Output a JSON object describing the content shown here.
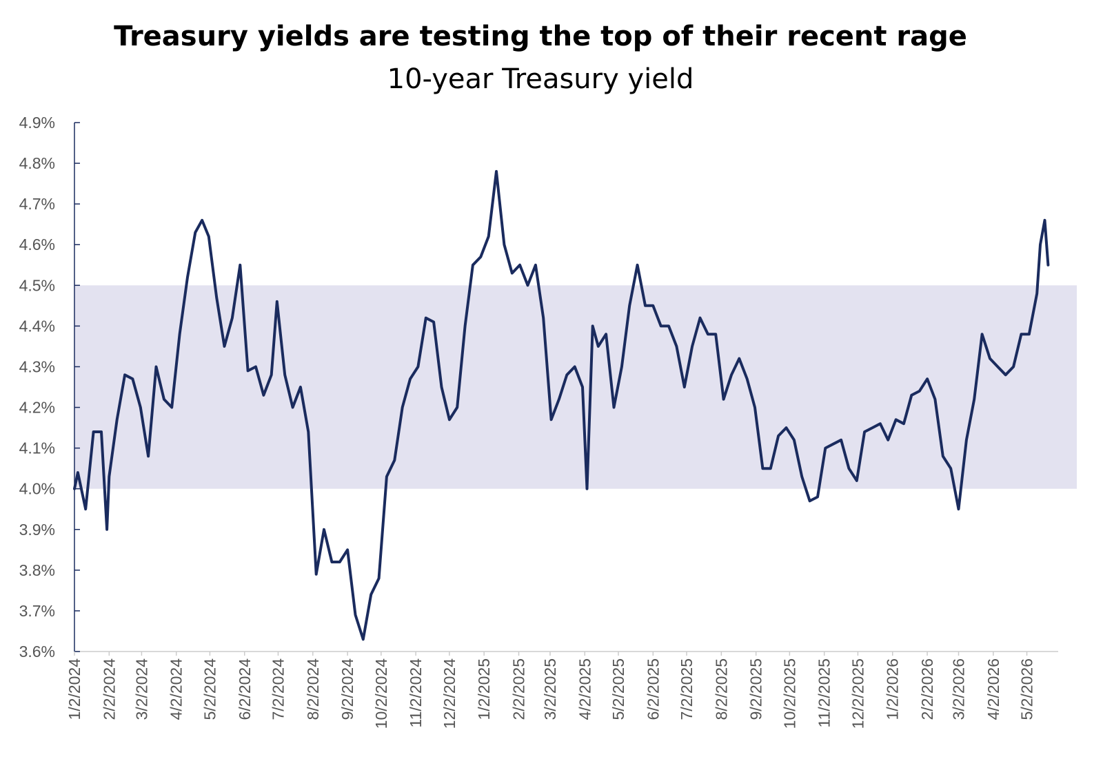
{
  "chart_data": {
    "type": "line",
    "title": "Treasury yields are testing the top of their recent rage",
    "subtitle": "10-year Treasury yield",
    "color": "#1a2b5e",
    "shaded_range": [
      4.0,
      4.5
    ],
    "shaded_color": "#e3e2f0",
    "x": [
      "1/2/2024",
      "1/5/2024",
      "1/12/2024",
      "1/19/2024",
      "1/26/2024",
      "1/31/2024",
      "2/2/2024",
      "2/9/2024",
      "2/16/2024",
      "2/23/2024",
      "3/1/2024",
      "3/8/2024",
      "3/15/2024",
      "3/22/2024",
      "3/29/2024",
      "4/5/2024",
      "4/12/2024",
      "4/19/2024",
      "4/25/2024",
      "5/1/2024",
      "5/8/2024",
      "5/15/2024",
      "5/22/2024",
      "5/29/2024",
      "6/5/2024",
      "6/12/2024",
      "6/19/2024",
      "6/26/2024",
      "7/1/2024",
      "7/8/2024",
      "7/15/2024",
      "7/22/2024",
      "7/29/2024",
      "8/5/2024",
      "8/12/2024",
      "8/19/2024",
      "8/26/2024",
      "9/2/2024",
      "9/9/2024",
      "9/16/2024",
      "9/23/2024",
      "9/30/2024",
      "10/7/2024",
      "10/14/2024",
      "10/21/2024",
      "10/28/2024",
      "11/4/2024",
      "11/11/2024",
      "11/18/2024",
      "11/25/2024",
      "12/2/2024",
      "12/9/2024",
      "12/16/2024",
      "12/23/2024",
      "12/30/2024",
      "1/6/2025",
      "1/13/2025",
      "1/20/2025",
      "1/27/2025",
      "2/3/2025",
      "2/10/2025",
      "2/17/2025",
      "2/24/2025",
      "3/3/2025",
      "3/10/2025",
      "3/17/2025",
      "3/24/2025",
      "3/31/2025",
      "4/4/2025",
      "4/9/2025",
      "4/14/2025",
      "4/21/2025",
      "4/28/2025",
      "5/5/2025",
      "5/12/2025",
      "5/19/2025",
      "5/26/2025",
      "6/2/2025",
      "6/9/2025",
      "6/16/2025",
      "6/23/2025",
      "6/30/2025",
      "7/7/2025",
      "7/14/2025",
      "7/21/2025",
      "7/28/2025",
      "8/4/2025",
      "8/11/2025",
      "8/18/2025",
      "8/25/2025",
      "9/1/2025",
      "9/8/2025",
      "9/15/2025",
      "9/22/2025",
      "9/29/2025",
      "10/6/2025",
      "10/13/2025",
      "10/20/2025",
      "10/27/2025",
      "11/3/2025",
      "11/10/2025",
      "11/17/2025",
      "11/24/2025",
      "12/1/2025",
      "12/8/2025",
      "12/15/2025",
      "12/22/2025",
      "12/29/2025",
      "1/5/2026",
      "1/12/2026",
      "1/19/2026",
      "1/26/2026",
      "2/2/2026",
      "2/9/2026",
      "2/16/2026",
      "2/23/2026",
      "3/2/2026",
      "3/9/2026",
      "3/16/2026",
      "3/23/2026",
      "3/30/2026",
      "4/6/2026",
      "4/13/2026",
      "4/20/2026",
      "4/27/2026",
      "5/4/2026",
      "5/11/2026",
      "5/14/2026",
      "5/18/2026",
      "5/21/2026"
    ],
    "values": [
      4.0,
      4.04,
      3.95,
      4.14,
      4.14,
      3.9,
      4.03,
      4.17,
      4.28,
      4.27,
      4.2,
      4.08,
      4.3,
      4.22,
      4.2,
      4.38,
      4.52,
      4.63,
      4.66,
      4.62,
      4.47,
      4.35,
      4.42,
      4.55,
      4.29,
      4.3,
      4.23,
      4.28,
      4.46,
      4.28,
      4.2,
      4.25,
      4.14,
      3.79,
      3.9,
      3.82,
      3.82,
      3.85,
      3.69,
      3.63,
      3.74,
      3.78,
      4.03,
      4.07,
      4.2,
      4.27,
      4.3,
      4.42,
      4.41,
      4.25,
      4.17,
      4.2,
      4.4,
      4.55,
      4.57,
      4.62,
      4.78,
      4.6,
      4.53,
      4.55,
      4.5,
      4.55,
      4.42,
      4.17,
      4.22,
      4.28,
      4.3,
      4.25,
      4.0,
      4.4,
      4.35,
      4.38,
      4.2,
      4.3,
      4.45,
      4.55,
      4.45,
      4.45,
      4.4,
      4.4,
      4.35,
      4.25,
      4.35,
      4.42,
      4.38,
      4.38,
      4.22,
      4.28,
      4.32,
      4.27,
      4.2,
      4.05,
      4.05,
      4.13,
      4.15,
      4.12,
      4.03,
      3.97,
      3.98,
      4.1,
      4.11,
      4.12,
      4.05,
      4.02,
      4.14,
      4.15,
      4.16,
      4.12,
      4.17,
      4.16,
      4.23,
      4.24,
      4.27,
      4.22,
      4.08,
      4.05,
      3.95,
      4.12,
      4.22,
      4.38,
      4.32,
      4.3,
      4.28,
      4.3,
      4.38,
      4.38,
      4.48,
      4.6,
      4.66,
      4.55
    ],
    "xlim": [
      "1/2/2024",
      "5/30/2026"
    ],
    "xticks": [
      "1/2/2024",
      "2/2/2024",
      "3/2/2024",
      "4/2/2024",
      "5/2/2024",
      "6/2/2024",
      "7/2/2024",
      "8/2/2024",
      "9/2/2024",
      "10/2/2024",
      "11/2/2024",
      "12/2/2024",
      "1/2/2025",
      "2/2/2025",
      "3/2/2025",
      "4/2/2025",
      "5/2/2025",
      "6/2/2025",
      "7/2/2025",
      "8/2/2025",
      "9/2/2025",
      "10/2/2025",
      "11/2/2025",
      "12/2/2025",
      "1/2/2026",
      "2/2/2026",
      "3/2/2026",
      "4/2/2026",
      "5/2/2026"
    ],
    "ylim": [
      3.6,
      4.9
    ],
    "yticks": [
      {
        "value": 3.6,
        "label": "3.6%"
      },
      {
        "value": 3.7,
        "label": "3.7%"
      },
      {
        "value": 3.8,
        "label": "3.8%"
      },
      {
        "value": 3.9,
        "label": "3.9%"
      },
      {
        "value": 4.0,
        "label": "4.0%"
      },
      {
        "value": 4.1,
        "label": "4.1%"
      },
      {
        "value": 4.2,
        "label": "4.2%"
      },
      {
        "value": 4.3,
        "label": "4.3%"
      },
      {
        "value": 4.4,
        "label": "4.4%"
      },
      {
        "value": 4.5,
        "label": "4.5%"
      },
      {
        "value": 4.6,
        "label": "4.6%"
      },
      {
        "value": 4.7,
        "label": "4.7%"
      },
      {
        "value": 4.8,
        "label": "4.8%"
      },
      {
        "value": 4.9,
        "label": "4.9%"
      }
    ]
  }
}
